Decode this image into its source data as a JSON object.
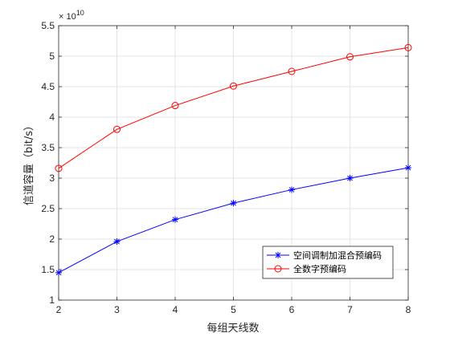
{
  "chart_data": {
    "type": "line",
    "xlabel": "每组天线数",
    "ylabel": "信道容量（bit/s）",
    "exponent_base": "× 10",
    "exponent_power": "10",
    "x": [
      2,
      3,
      4,
      5,
      6,
      7,
      8
    ],
    "xlim": [
      2,
      8
    ],
    "ylim": [
      1,
      5.5
    ],
    "x_ticks": [
      "2",
      "3",
      "4",
      "5",
      "6",
      "7",
      "8"
    ],
    "y_ticks": [
      "1",
      "1.5",
      "2",
      "2.5",
      "3",
      "3.5",
      "4",
      "4.5",
      "5",
      "5.5"
    ],
    "grid": true,
    "legend_position": "lower-right",
    "series": [
      {
        "name": "空间调制加混合预编码",
        "values": [
          1.45,
          1.96,
          2.32,
          2.59,
          2.81,
          3.0,
          3.17
        ],
        "color": "#0000ff",
        "marker": "asterisk"
      },
      {
        "name": "全数字预编码",
        "values": [
          3.16,
          3.8,
          4.19,
          4.51,
          4.75,
          4.99,
          5.14
        ],
        "color": "#ff0000",
        "marker": "circle"
      }
    ]
  }
}
